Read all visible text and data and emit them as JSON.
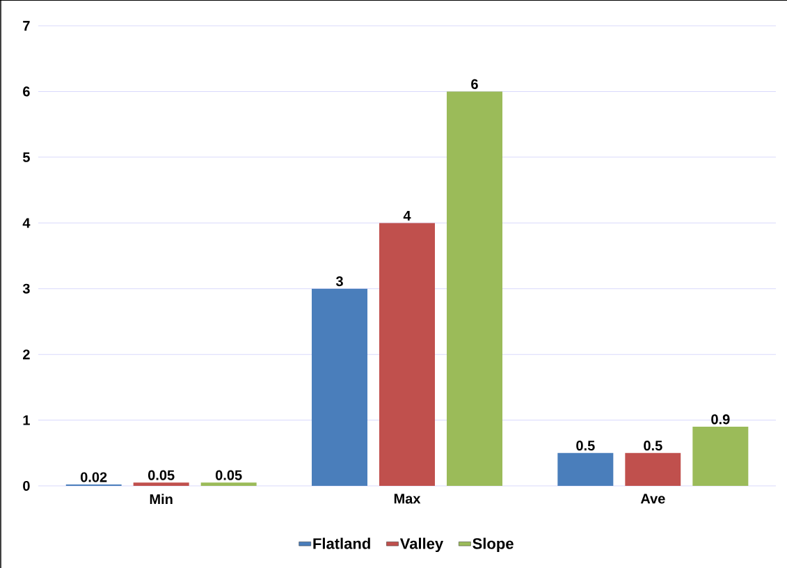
{
  "chart_data": {
    "type": "bar",
    "categories": [
      "Min",
      "Max",
      "Ave"
    ],
    "series": [
      {
        "name": "Flatland",
        "color": "#4a7ebb",
        "values": [
          0.02,
          3,
          0.5
        ]
      },
      {
        "name": "Valley",
        "color": "#c0504d",
        "values": [
          0.05,
          4,
          0.5
        ]
      },
      {
        "name": "Slope",
        "color": "#9bbb59",
        "values": [
          0.05,
          6,
          0.9
        ]
      }
    ],
    "ylim": [
      0,
      7
    ],
    "yticks": [
      0,
      1,
      2,
      3,
      4,
      5,
      6,
      7
    ],
    "grid": "y",
    "legend": "bottom",
    "data_labels": true
  }
}
